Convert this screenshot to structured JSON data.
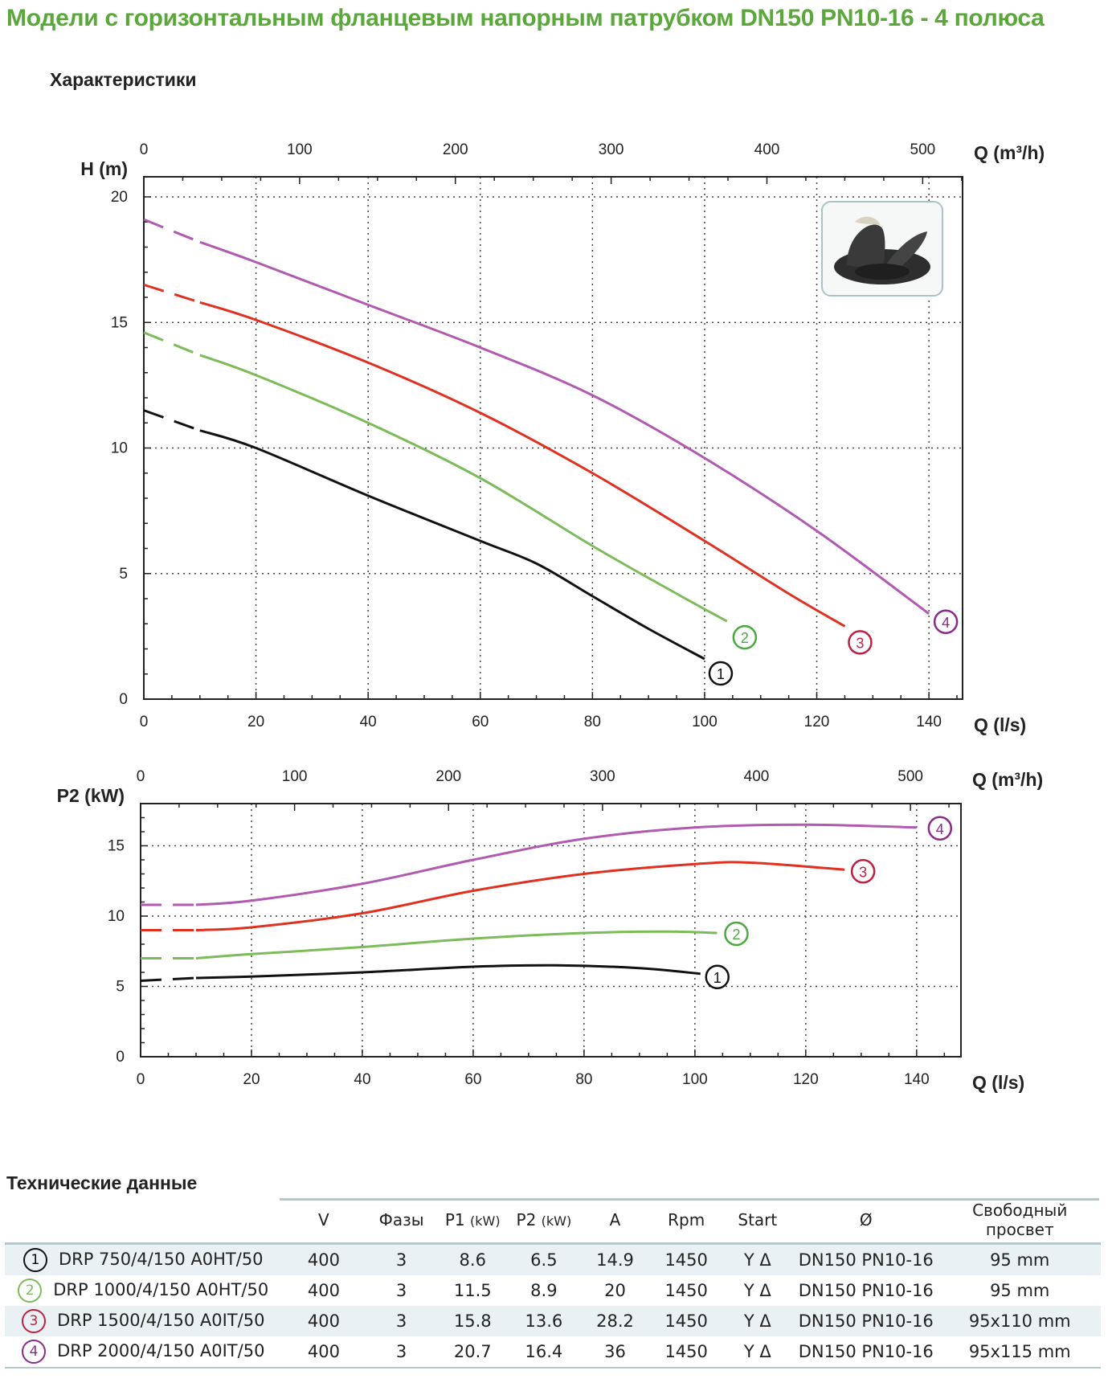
{
  "page": {
    "title": "Модели с горизонтальным фланцевым напорным патрубком DN150 PN10-16 - 4 полюса",
    "characteristics_heading": "Характеристики",
    "tech_heading": "Технические данные"
  },
  "colors": {
    "title": "#5aa83a",
    "curve1": "#111111",
    "curve2": "#7dbb5a",
    "curve3": "#e03020",
    "curve4": "#b05ab0"
  },
  "chart_data": [
    {
      "type": "line",
      "ylabel": "H (m)",
      "xlabel": "Q (l/s)",
      "x2label": "Q (m³/h)",
      "xlim": [
        0,
        146
      ],
      "ylim": [
        0,
        20.8
      ],
      "x_ticks": [
        0,
        20,
        40,
        60,
        80,
        100,
        120,
        140
      ],
      "x2_ticks": [
        0,
        100,
        200,
        300,
        400,
        500
      ],
      "y_ticks": [
        0,
        5,
        10,
        15,
        20
      ],
      "grid": true,
      "series": [
        {
          "name": "1",
          "dashed_until": 10,
          "points": [
            [
              0,
              11.5
            ],
            [
              10,
              10.7
            ],
            [
              20,
              10.0
            ],
            [
              40,
              8.1
            ],
            [
              60,
              6.3
            ],
            [
              70,
              5.4
            ],
            [
              80,
              4.1
            ],
            [
              90,
              2.8
            ],
            [
              100,
              1.6
            ]
          ]
        },
        {
          "name": "2",
          "dashed_until": 10,
          "points": [
            [
              0,
              14.6
            ],
            [
              10,
              13.7
            ],
            [
              20,
              12.9
            ],
            [
              40,
              11.0
            ],
            [
              60,
              8.8
            ],
            [
              80,
              6.1
            ],
            [
              95,
              4.2
            ],
            [
              104,
              3.1
            ]
          ]
        },
        {
          "name": "3",
          "dashed_until": 10,
          "points": [
            [
              0,
              16.5
            ],
            [
              10,
              15.8
            ],
            [
              20,
              15.1
            ],
            [
              40,
              13.4
            ],
            [
              60,
              11.4
            ],
            [
              80,
              9.0
            ],
            [
              100,
              6.3
            ],
            [
              115,
              4.2
            ],
            [
              125,
              2.9
            ]
          ]
        },
        {
          "name": "4",
          "dashed_until": 10,
          "points": [
            [
              0,
              19.1
            ],
            [
              10,
              18.2
            ],
            [
              20,
              17.4
            ],
            [
              40,
              15.7
            ],
            [
              60,
              14.0
            ],
            [
              80,
              12.1
            ],
            [
              100,
              9.6
            ],
            [
              120,
              6.7
            ],
            [
              140,
              3.4
            ]
          ]
        }
      ]
    },
    {
      "type": "line",
      "ylabel": "P2 (kW)",
      "xlabel": "Q (l/s)",
      "x2label": "Q (m³/h)",
      "xlim": [
        0,
        148
      ],
      "ylim": [
        0,
        18
      ],
      "x_ticks": [
        0,
        20,
        40,
        60,
        80,
        100,
        120,
        140
      ],
      "x2_ticks": [
        0,
        100,
        200,
        300,
        400,
        500
      ],
      "y_ticks": [
        0,
        5,
        10,
        15
      ],
      "grid": true,
      "series": [
        {
          "name": "1",
          "dashed_until": 10,
          "points": [
            [
              0,
              5.4
            ],
            [
              10,
              5.6
            ],
            [
              20,
              5.7
            ],
            [
              40,
              6.0
            ],
            [
              60,
              6.4
            ],
            [
              75,
              6.5
            ],
            [
              90,
              6.3
            ],
            [
              101,
              5.9
            ]
          ]
        },
        {
          "name": "2",
          "dashed_until": 10,
          "points": [
            [
              0,
              7.0
            ],
            [
              10,
              7.0
            ],
            [
              20,
              7.3
            ],
            [
              40,
              7.8
            ],
            [
              60,
              8.4
            ],
            [
              80,
              8.8
            ],
            [
              95,
              8.9
            ],
            [
              104,
              8.8
            ]
          ]
        },
        {
          "name": "3",
          "dashed_until": 10,
          "points": [
            [
              0,
              9.0
            ],
            [
              10,
              9.0
            ],
            [
              20,
              9.2
            ],
            [
              40,
              10.2
            ],
            [
              60,
              11.8
            ],
            [
              80,
              13.0
            ],
            [
              100,
              13.7
            ],
            [
              110,
              13.8
            ],
            [
              127,
              13.3
            ]
          ]
        },
        {
          "name": "4",
          "dashed_until": 10,
          "points": [
            [
              0,
              10.8
            ],
            [
              10,
              10.8
            ],
            [
              20,
              11.1
            ],
            [
              40,
              12.3
            ],
            [
              60,
              14.0
            ],
            [
              80,
              15.5
            ],
            [
              100,
              16.3
            ],
            [
              120,
              16.5
            ],
            [
              140,
              16.3
            ]
          ]
        }
      ]
    }
  ],
  "table": {
    "headers": {
      "v": "V",
      "phases": "Фазы",
      "p1": "P1",
      "p1_unit": "(kW)",
      "p2": "P2",
      "p2_unit": "(kW)",
      "a": "A",
      "rpm": "Rpm",
      "start": "Start",
      "diameter": "Ø",
      "clearance_1": "Свободный",
      "clearance_2": "просвет"
    },
    "rows": [
      {
        "num": "1",
        "model": "DRP 750/4/150 A0HT/50",
        "v": "400",
        "phases": "3",
        "p1": "8.6",
        "p2": "6.5",
        "a": "14.9",
        "rpm": "1450",
        "start": "Y Δ",
        "diameter": "DN150 PN10-16",
        "clearance": "95 mm"
      },
      {
        "num": "2",
        "model": "DRP 1000/4/150 A0HT/50",
        "v": "400",
        "phases": "3",
        "p1": "11.5",
        "p2": "8.9",
        "a": "20",
        "rpm": "1450",
        "start": "Y Δ",
        "diameter": "DN150 PN10-16",
        "clearance": "95 mm"
      },
      {
        "num": "3",
        "model": "DRP 1500/4/150 A0IT/50",
        "v": "400",
        "phases": "3",
        "p1": "15.8",
        "p2": "13.6",
        "a": "28.2",
        "rpm": "1450",
        "start": "Y Δ",
        "diameter": "DN150 PN10-16",
        "clearance": "95x110 mm"
      },
      {
        "num": "4",
        "model": "DRP 2000/4/150 A0IT/50",
        "v": "400",
        "phases": "3",
        "p1": "20.7",
        "p2": "16.4",
        "a": "36",
        "rpm": "1450",
        "start": "Y Δ",
        "diameter": "DN150 PN10-16",
        "clearance": "95x115 mm"
      }
    ]
  }
}
